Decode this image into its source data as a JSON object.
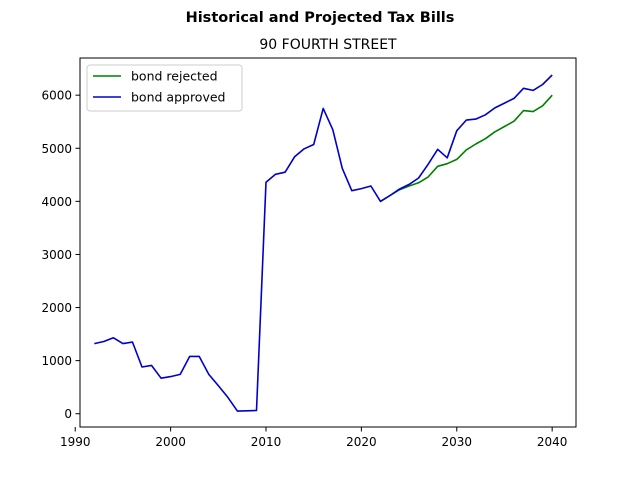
{
  "chart_data": {
    "type": "line",
    "title": "Historical and Projected Tax Bills",
    "subtitle": "90 FOURTH STREET",
    "xlabel": "",
    "ylabel": "",
    "xlim": [
      1990.5,
      2042.5
    ],
    "ylim": [
      -250,
      6700
    ],
    "xticks": [
      1990,
      2000,
      2010,
      2020,
      2030,
      2040
    ],
    "yticks": [
      0,
      1000,
      2000,
      3000,
      4000,
      5000,
      6000
    ],
    "grid": false,
    "legend_position": "top-left",
    "series": [
      {
        "name": "bond rejected",
        "color": "#008000",
        "points": [
          [
            2022,
            4000
          ],
          [
            2023,
            4110
          ],
          [
            2024,
            4220
          ],
          [
            2025,
            4290
          ],
          [
            2026,
            4350
          ],
          [
            2027,
            4460
          ],
          [
            2028,
            4660
          ],
          [
            2029,
            4710
          ],
          [
            2030,
            4790
          ],
          [
            2031,
            4970
          ],
          [
            2032,
            5080
          ],
          [
            2033,
            5180
          ],
          [
            2034,
            5310
          ],
          [
            2035,
            5410
          ],
          [
            2036,
            5510
          ],
          [
            2037,
            5710
          ],
          [
            2038,
            5690
          ],
          [
            2039,
            5800
          ],
          [
            2040,
            6000
          ]
        ]
      },
      {
        "name": "bond approved",
        "color": "#0000cd",
        "points": [
          [
            1992,
            1320
          ],
          [
            1993,
            1360
          ],
          [
            1994,
            1430
          ],
          [
            1995,
            1320
          ],
          [
            1996,
            1350
          ],
          [
            1997,
            880
          ],
          [
            1998,
            910
          ],
          [
            1999,
            670
          ],
          [
            2000,
            700
          ],
          [
            2001,
            740
          ],
          [
            2002,
            1080
          ],
          [
            2003,
            1080
          ],
          [
            2004,
            740
          ],
          [
            2005,
            530
          ],
          [
            2006,
            310
          ],
          [
            2007,
            50
          ],
          [
            2008,
            55
          ],
          [
            2009,
            60
          ],
          [
            2010,
            4360
          ],
          [
            2011,
            4510
          ],
          [
            2012,
            4550
          ],
          [
            2013,
            4840
          ],
          [
            2014,
            4990
          ],
          [
            2015,
            5070
          ],
          [
            2016,
            5750
          ],
          [
            2017,
            5350
          ],
          [
            2018,
            4620
          ],
          [
            2019,
            4200
          ],
          [
            2020,
            4240
          ],
          [
            2021,
            4290
          ],
          [
            2022,
            4000
          ],
          [
            2023,
            4110
          ],
          [
            2024,
            4230
          ],
          [
            2025,
            4320
          ],
          [
            2026,
            4440
          ],
          [
            2027,
            4700
          ],
          [
            2028,
            4980
          ],
          [
            2029,
            4820
          ],
          [
            2030,
            5330
          ],
          [
            2031,
            5530
          ],
          [
            2032,
            5550
          ],
          [
            2033,
            5630
          ],
          [
            2034,
            5760
          ],
          [
            2035,
            5850
          ],
          [
            2036,
            5940
          ],
          [
            2037,
            6130
          ],
          [
            2038,
            6090
          ],
          [
            2039,
            6200
          ],
          [
            2040,
            6380
          ]
        ]
      }
    ]
  }
}
